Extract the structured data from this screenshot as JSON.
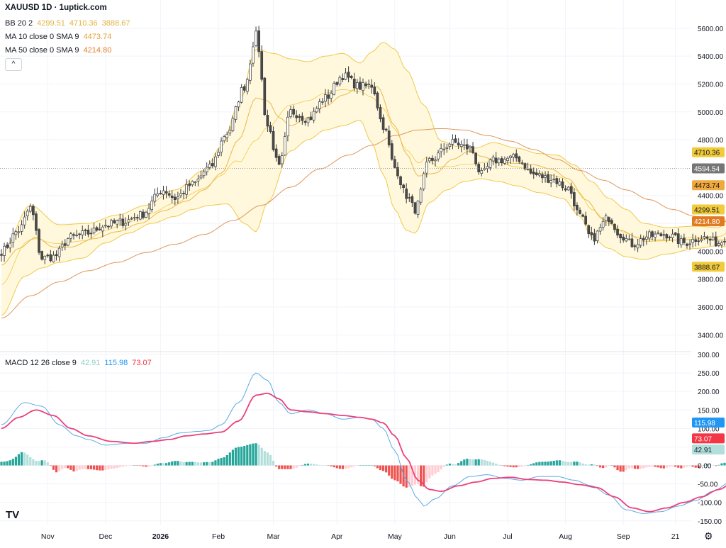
{
  "header": {
    "title": "XAUUSD 1D · 1uptick.com"
  },
  "legend": [
    {
      "name": "BB 20 2",
      "values": [
        {
          "text": "4299.51",
          "color": "#e3b341"
        },
        {
          "text": "4710.36",
          "color": "#e3b341"
        },
        {
          "text": "3888.67",
          "color": "#e3b341"
        }
      ]
    },
    {
      "name": "MA 10 close 0 SMA 9",
      "values": [
        {
          "text": "4473.74",
          "color": "#e6a23c"
        }
      ]
    },
    {
      "name": "MA 50 close 0 SMA 9",
      "values": [
        {
          "text": "4214.80",
          "color": "#e0812b"
        }
      ]
    }
  ],
  "macd_legend": {
    "name": "MACD 12 26 close 9",
    "values": [
      {
        "text": "42.91",
        "color": "#8dd3c7"
      },
      {
        "text": "115.98",
        "color": "#2196f3"
      },
      {
        "text": "73.07",
        "color": "#f23645"
      }
    ]
  },
  "controls": {
    "collapse": "^",
    "logo": "TV",
    "settings": "⚙"
  },
  "colors": {
    "up": "#ffffff",
    "down": "#4a4a4a",
    "bb": "#f0c94a",
    "bb_fill": "#fff8dc",
    "ma10": "#e9b84a",
    "ma50": "#e0965a",
    "macd": "#5aa9e6",
    "signal": "#ec407a",
    "hist_up_strong": "#26a69a",
    "hist_up_weak": "#b2dfdb",
    "hist_down_strong": "#ef5350",
    "hist_down_weak": "#ffcdd2"
  },
  "chart_data": [
    {
      "type": "candlestick",
      "name": "price",
      "ylim": [
        3300,
        5650
      ],
      "yticks": [
        "5600.00",
        "5400.00",
        "5200.00",
        "5000.00",
        "4800.00",
        "4400.00",
        "4200.00",
        "4000.00",
        "3800.00",
        "3600.00",
        "3400.00"
      ],
      "xticks": [
        "Nov",
        "Dec",
        "2026",
        "Feb",
        "Mar",
        "Apr",
        "May",
        "Jun",
        "Jul",
        "Aug",
        "Sep",
        "21"
      ],
      "value_labels": [
        {
          "text": "4710.36",
          "value": 4710.36,
          "bg": "#f2cb3a",
          "fg": "#131722"
        },
        {
          "text": "4594.54",
          "value": 4594.54,
          "bg": "#757575",
          "fg": "#ffffff"
        },
        {
          "text": "4473.74",
          "value": 4473.74,
          "bg": "#f0a93a",
          "fg": "#131722"
        },
        {
          "text": "4299.51",
          "value": 4299.51,
          "bg": "#f2cb3a",
          "fg": "#131722"
        },
        {
          "text": "4214.80",
          "value": 4214.8,
          "bg": "#e07b22",
          "fg": "#ffffff"
        },
        {
          "text": "3888.67",
          "value": 3888.67,
          "bg": "#f2cb3a",
          "fg": "#131722"
        }
      ],
      "last_price": 4594.54,
      "close_anchors": [
        [
          0,
          4000
        ],
        [
          6,
          4150
        ],
        [
          10,
          4310
        ],
        [
          14,
          3950
        ],
        [
          18,
          3960
        ],
        [
          24,
          4100
        ],
        [
          30,
          4130
        ],
        [
          36,
          4190
        ],
        [
          42,
          4210
        ],
        [
          48,
          4260
        ],
        [
          56,
          4440
        ],
        [
          60,
          4380
        ],
        [
          66,
          4480
        ],
        [
          72,
          4600
        ],
        [
          78,
          4850
        ],
        [
          84,
          5180
        ],
        [
          88,
          5550
        ],
        [
          92,
          4900
        ],
        [
          96,
          4600
        ],
        [
          100,
          5000
        ],
        [
          106,
          4950
        ],
        [
          112,
          5100
        ],
        [
          118,
          5260
        ],
        [
          124,
          5180
        ],
        [
          128,
          5190
        ],
        [
          132,
          4900
        ],
        [
          136,
          4600
        ],
        [
          140,
          4400
        ],
        [
          143,
          4300
        ],
        [
          148,
          4650
        ],
        [
          156,
          4780
        ],
        [
          162,
          4740
        ],
        [
          166,
          4550
        ],
        [
          170,
          4650
        ],
        [
          178,
          4670
        ],
        [
          184,
          4550
        ],
        [
          190,
          4520
        ],
        [
          196,
          4450
        ],
        [
          200,
          4250
        ],
        [
          204,
          4090
        ],
        [
          210,
          4240
        ],
        [
          214,
          4120
        ],
        [
          218,
          4050
        ],
        [
          224,
          4110
        ],
        [
          230,
          4120
        ],
        [
          236,
          4060
        ],
        [
          242,
          4100
        ],
        [
          248,
          4060
        ],
        [
          252,
          4140
        ],
        [
          256,
          4380
        ],
        [
          260,
          4420
        ],
        [
          264,
          4380
        ],
        [
          268,
          4590
        ],
        [
          272,
          4594
        ]
      ],
      "bb_upper_anchors": [
        [
          0,
          3980
        ],
        [
          10,
          4330
        ],
        [
          20,
          4190
        ],
        [
          30,
          4200
        ],
        [
          40,
          4260
        ],
        [
          50,
          4330
        ],
        [
          60,
          4440
        ],
        [
          70,
          4580
        ],
        [
          76,
          4750
        ],
        [
          82,
          5050
        ],
        [
          88,
          5450
        ],
        [
          94,
          5420
        ],
        [
          100,
          5380
        ],
        [
          106,
          5360
        ],
        [
          112,
          5400
        ],
        [
          118,
          5420
        ],
        [
          124,
          5350
        ],
        [
          128,
          5430
        ],
        [
          132,
          5500
        ],
        [
          136,
          5450
        ],
        [
          140,
          5300
        ],
        [
          146,
          5050
        ],
        [
          152,
          4790
        ],
        [
          158,
          4750
        ],
        [
          164,
          4740
        ],
        [
          170,
          4780
        ],
        [
          178,
          4740
        ],
        [
          186,
          4700
        ],
        [
          192,
          4690
        ],
        [
          198,
          4620
        ],
        [
          204,
          4500
        ],
        [
          210,
          4380
        ],
        [
          216,
          4300
        ],
        [
          222,
          4200
        ],
        [
          230,
          4170
        ],
        [
          240,
          4180
        ],
        [
          248,
          4170
        ],
        [
          254,
          4320
        ],
        [
          262,
          4520
        ],
        [
          272,
          4720
        ]
      ],
      "bb_lower_anchors": [
        [
          0,
          3540
        ],
        [
          8,
          3820
        ],
        [
          14,
          3880
        ],
        [
          20,
          3920
        ],
        [
          28,
          3950
        ],
        [
          36,
          4060
        ],
        [
          44,
          4130
        ],
        [
          52,
          4200
        ],
        [
          60,
          4250
        ],
        [
          66,
          4300
        ],
        [
          72,
          4330
        ],
        [
          78,
          4340
        ],
        [
          84,
          4200
        ],
        [
          88,
          4140
        ],
        [
          92,
          4350
        ],
        [
          100,
          4720
        ],
        [
          106,
          4800
        ],
        [
          112,
          4870
        ],
        [
          118,
          4900
        ],
        [
          124,
          4940
        ],
        [
          128,
          4780
        ],
        [
          132,
          4550
        ],
        [
          136,
          4300
        ],
        [
          140,
          4150
        ],
        [
          143,
          4130
        ],
        [
          148,
          4350
        ],
        [
          154,
          4440
        ],
        [
          160,
          4500
        ],
        [
          166,
          4520
        ],
        [
          172,
          4500
        ],
        [
          178,
          4470
        ],
        [
          186,
          4420
        ],
        [
          194,
          4380
        ],
        [
          200,
          4250
        ],
        [
          204,
          4100
        ],
        [
          210,
          4020
        ],
        [
          216,
          3960
        ],
        [
          222,
          3940
        ],
        [
          230,
          3980
        ],
        [
          240,
          4020
        ],
        [
          248,
          4040
        ],
        [
          256,
          4000
        ],
        [
          262,
          3930
        ],
        [
          268,
          3900
        ],
        [
          272,
          3889
        ]
      ],
      "ma10_anchors": [
        [
          0,
          3900
        ],
        [
          6,
          4020
        ],
        [
          12,
          4100
        ],
        [
          18,
          4030
        ],
        [
          24,
          4030
        ],
        [
          32,
          4090
        ],
        [
          40,
          4140
        ],
        [
          48,
          4200
        ],
        [
          56,
          4290
        ],
        [
          64,
          4360
        ],
        [
          70,
          4440
        ],
        [
          76,
          4560
        ],
        [
          82,
          4800
        ],
        [
          88,
          5100
        ],
        [
          92,
          5080
        ],
        [
          96,
          4960
        ],
        [
          100,
          4900
        ],
        [
          106,
          4960
        ],
        [
          112,
          5040
        ],
        [
          118,
          5120
        ],
        [
          124,
          5180
        ],
        [
          130,
          5180
        ],
        [
          136,
          4900
        ],
        [
          140,
          4700
        ],
        [
          144,
          4540
        ],
        [
          150,
          4560
        ],
        [
          156,
          4660
        ],
        [
          162,
          4720
        ],
        [
          166,
          4680
        ],
        [
          172,
          4640
        ],
        [
          178,
          4630
        ],
        [
          184,
          4620
        ],
        [
          190,
          4590
        ],
        [
          196,
          4520
        ],
        [
          202,
          4370
        ],
        [
          208,
          4230
        ],
        [
          214,
          4150
        ],
        [
          220,
          4100
        ],
        [
          226,
          4080
        ],
        [
          234,
          4080
        ],
        [
          242,
          4090
        ],
        [
          250,
          4080
        ],
        [
          256,
          4180
        ],
        [
          262,
          4300
        ],
        [
          268,
          4420
        ],
        [
          272,
          4474
        ]
      ],
      "ma50_anchors": [
        [
          0,
          3520
        ],
        [
          10,
          3680
        ],
        [
          20,
          3780
        ],
        [
          30,
          3860
        ],
        [
          40,
          3920
        ],
        [
          50,
          3990
        ],
        [
          60,
          4050
        ],
        [
          70,
          4120
        ],
        [
          80,
          4220
        ],
        [
          90,
          4330
        ],
        [
          100,
          4460
        ],
        [
          110,
          4590
        ],
        [
          120,
          4690
        ],
        [
          128,
          4760
        ],
        [
          136,
          4830
        ],
        [
          144,
          4870
        ],
        [
          152,
          4880
        ],
        [
          160,
          4870
        ],
        [
          168,
          4830
        ],
        [
          176,
          4790
        ],
        [
          184,
          4730
        ],
        [
          192,
          4660
        ],
        [
          200,
          4580
        ],
        [
          208,
          4510
        ],
        [
          216,
          4440
        ],
        [
          224,
          4370
        ],
        [
          232,
          4300
        ],
        [
          240,
          4250
        ],
        [
          248,
          4215
        ],
        [
          256,
          4200
        ],
        [
          264,
          4205
        ],
        [
          272,
          4215
        ]
      ]
    },
    {
      "type": "macd",
      "name": "MACD 12 26 close 9",
      "ylim": [
        -160,
        300
      ],
      "yticks": [
        "300.00",
        "250.00",
        "200.00",
        "150.00",
        "100.00",
        "50.00",
        "0.00",
        "-50.00",
        "-100.00",
        "-150.00"
      ],
      "value_labels": [
        {
          "text": "115.98",
          "value": 115.98,
          "bg": "#2196f3",
          "fg": "#ffffff"
        },
        {
          "text": "73.07",
          "value": 73.07,
          "bg": "#f23645",
          "fg": "#ffffff"
        },
        {
          "text": "42.91",
          "value": 42.91,
          "bg": "#b2dfdb",
          "fg": "#131722"
        }
      ],
      "macd_anchors": [
        [
          0,
          110
        ],
        [
          8,
          170
        ],
        [
          14,
          160
        ],
        [
          20,
          110
        ],
        [
          26,
          80
        ],
        [
          30,
          70
        ],
        [
          36,
          55
        ],
        [
          44,
          60
        ],
        [
          50,
          60
        ],
        [
          56,
          75
        ],
        [
          62,
          88
        ],
        [
          68,
          92
        ],
        [
          72,
          95
        ],
        [
          76,
          110
        ],
        [
          82,
          170
        ],
        [
          88,
          250
        ],
        [
          92,
          230
        ],
        [
          96,
          170
        ],
        [
          100,
          140
        ],
        [
          106,
          150
        ],
        [
          112,
          140
        ],
        [
          118,
          125
        ],
        [
          124,
          130
        ],
        [
          128,
          125
        ],
        [
          132,
          100
        ],
        [
          136,
          40
        ],
        [
          140,
          -40
        ],
        [
          144,
          -90
        ],
        [
          146,
          -110
        ],
        [
          150,
          -90
        ],
        [
          156,
          -55
        ],
        [
          162,
          -30
        ],
        [
          168,
          -25
        ],
        [
          174,
          -35
        ],
        [
          180,
          -40
        ],
        [
          186,
          -30
        ],
        [
          192,
          -30
        ],
        [
          198,
          -40
        ],
        [
          204,
          -55
        ],
        [
          210,
          -80
        ],
        [
          216,
          -120
        ],
        [
          222,
          -130
        ],
        [
          228,
          -125
        ],
        [
          234,
          -110
        ],
        [
          240,
          -95
        ],
        [
          246,
          -70
        ],
        [
          252,
          -45
        ],
        [
          256,
          -5
        ],
        [
          262,
          40
        ],
        [
          268,
          90
        ],
        [
          272,
          116
        ]
      ],
      "signal_anchors": [
        [
          0,
          100
        ],
        [
          6,
          130
        ],
        [
          12,
          150
        ],
        [
          18,
          135
        ],
        [
          24,
          100
        ],
        [
          30,
          80
        ],
        [
          38,
          65
        ],
        [
          46,
          60
        ],
        [
          52,
          65
        ],
        [
          58,
          70
        ],
        [
          64,
          80
        ],
        [
          70,
          85
        ],
        [
          76,
          90
        ],
        [
          82,
          120
        ],
        [
          88,
          190
        ],
        [
          92,
          195
        ],
        [
          96,
          180
        ],
        [
          100,
          150
        ],
        [
          106,
          145
        ],
        [
          112,
          140
        ],
        [
          118,
          135
        ],
        [
          124,
          130
        ],
        [
          128,
          125
        ],
        [
          132,
          115
        ],
        [
          136,
          80
        ],
        [
          140,
          20
        ],
        [
          144,
          -40
        ],
        [
          148,
          -65
        ],
        [
          152,
          -70
        ],
        [
          158,
          -55
        ],
        [
          164,
          -45
        ],
        [
          170,
          -35
        ],
        [
          176,
          -32
        ],
        [
          182,
          -38
        ],
        [
          188,
          -40
        ],
        [
          194,
          -45
        ],
        [
          200,
          -52
        ],
        [
          206,
          -60
        ],
        [
          212,
          -85
        ],
        [
          218,
          -115
        ],
        [
          224,
          -125
        ],
        [
          230,
          -115
        ],
        [
          236,
          -100
        ],
        [
          242,
          -85
        ],
        [
          248,
          -65
        ],
        [
          254,
          -40
        ],
        [
          260,
          0
        ],
        [
          266,
          40
        ],
        [
          272,
          73
        ]
      ]
    }
  ]
}
